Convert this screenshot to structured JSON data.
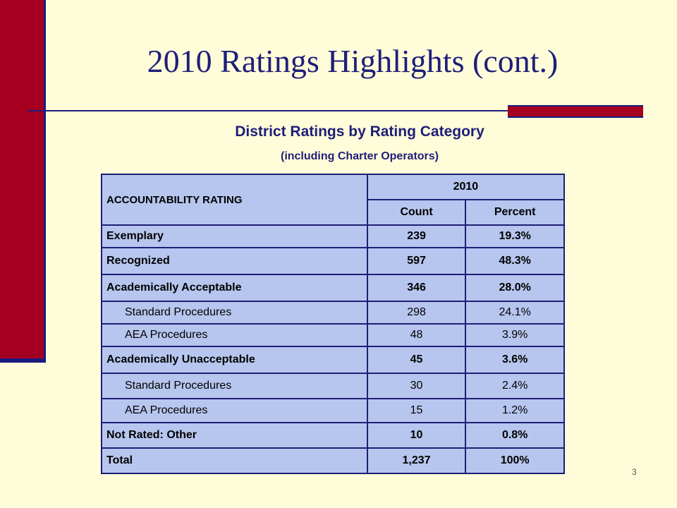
{
  "slide": {
    "title": "2010 Ratings Highlights (cont.)",
    "subtitle": "District Ratings by Rating Category",
    "subtitle2": "(including Charter Operators)",
    "page_number": "3"
  },
  "table": {
    "header_rating": "ACCOUNTABILITY RATING",
    "header_year": "2010",
    "header_count": "Count",
    "header_percent": "Percent",
    "rows": [
      {
        "label": "Exemplary",
        "count": "239",
        "percent": "19.3%"
      },
      {
        "label": "Recognized",
        "count": "597",
        "percent": "48.3%"
      },
      {
        "label": "Academically Acceptable",
        "count": "346",
        "percent": "28.0%"
      },
      {
        "label": "Standard Procedures",
        "count": "298",
        "percent": "24.1%"
      },
      {
        "label": "AEA Procedures",
        "count": "48",
        "percent": "3.9%"
      },
      {
        "label": "Academically Unacceptable",
        "count": "45",
        "percent": "3.6%"
      },
      {
        "label": "Standard Procedures",
        "count": "30",
        "percent": "2.4%"
      },
      {
        "label": "AEA Procedures",
        "count": "15",
        "percent": "1.2%"
      },
      {
        "label": "Not Rated: Other",
        "count": "10",
        "percent": "0.8%"
      },
      {
        "label": "Total",
        "count": "1,237",
        "percent": "100%"
      }
    ]
  },
  "colors": {
    "background": "#FFFCD9",
    "accent_red": "#A50021",
    "navy": "#1e1e78",
    "table_fill": "#B7C6EE"
  }
}
